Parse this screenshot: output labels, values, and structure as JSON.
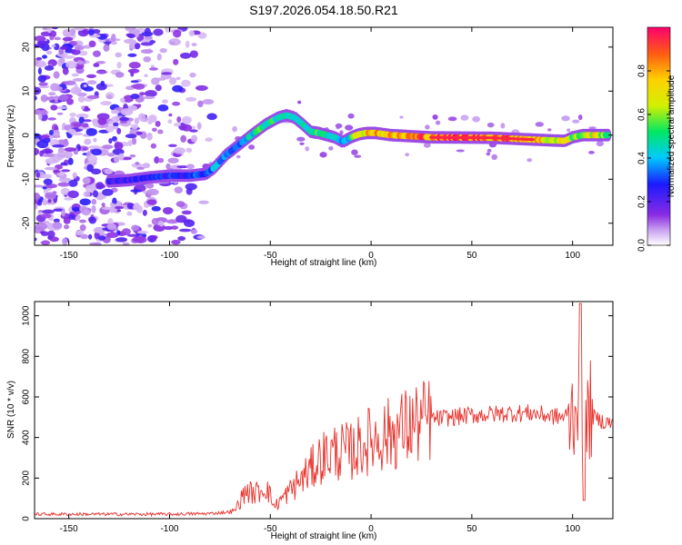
{
  "title": "S197.2026.054.18.50.R21",
  "chart_data": [
    {
      "type": "heatmap",
      "name": "spectrogram",
      "xlabel": "Height of straight line (km)",
      "ylabel": "Frequency (Hz)",
      "xlim": [
        -167,
        120
      ],
      "ylim": [
        -25,
        24.5
      ],
      "x_ticks": [
        -150,
        -100,
        -50,
        0,
        50,
        100
      ],
      "y_ticks": [
        -20,
        -10,
        0,
        10,
        20
      ],
      "ridge": {
        "x": [
          -130,
          -120,
          -110,
          -100,
          -90,
          -82,
          -78,
          -72,
          -65,
          -58,
          -52,
          -46,
          -42,
          -38,
          -34,
          -30,
          -26,
          -22,
          -18,
          -14,
          -10,
          -6,
          -2,
          2,
          10,
          30,
          60,
          80,
          90,
          96,
          100,
          105,
          110,
          118
        ],
        "y": [
          -10.5,
          -10.2,
          -9.6,
          -9.2,
          -9.2,
          -8.8,
          -7.5,
          -4.5,
          -2.0,
          0.5,
          2.5,
          4.0,
          4.5,
          4.0,
          2.5,
          0.8,
          0.5,
          0.0,
          -0.5,
          -1.5,
          -0.5,
          0.2,
          0.5,
          0.5,
          0.0,
          -0.5,
          -0.6,
          -1.0,
          -1.2,
          -1.3,
          -0.5,
          0.0,
          0.0,
          0.0
        ],
        "amplitude": [
          0.25,
          0.25,
          0.3,
          0.3,
          0.3,
          0.35,
          0.4,
          0.35,
          0.4,
          0.5,
          0.55,
          0.55,
          0.5,
          0.5,
          0.45,
          0.5,
          0.55,
          0.55,
          0.5,
          0.45,
          0.5,
          0.75,
          0.85,
          0.85,
          0.8,
          0.95,
          0.95,
          0.85,
          0.7,
          0.8,
          0.6,
          0.65,
          0.75,
          0.6
        ]
      },
      "noise_region": [
        -167,
        -75
      ],
      "colorbar": {
        "label": "Normalized spectral amplitude",
        "range": [
          0,
          1
        ],
        "ticks": [
          "0.0",
          "0.2",
          "0.4",
          "0.6",
          "0.8"
        ]
      }
    },
    {
      "type": "line",
      "name": "snr",
      "xlabel": "Height of straight line (km)",
      "ylabel": "SNR (10 * v/v)",
      "xlim": [
        -167,
        120
      ],
      "ylim": [
        0,
        1070
      ],
      "x_ticks": [
        -150,
        -100,
        -50,
        0,
        50,
        100
      ],
      "y_ticks": [
        0,
        200,
        400,
        600,
        800,
        1000
      ],
      "color": "#e8302a",
      "envelope": {
        "x": [
          -167,
          -100,
          -80,
          -68,
          -62,
          -58,
          -52,
          -48,
          -42,
          -36,
          -30,
          -25,
          -18,
          -10,
          0,
          10,
          20,
          30,
          40,
          50,
          60,
          70,
          80,
          90,
          95,
          100,
          102,
          104,
          106,
          108,
          110,
          115,
          120
        ],
        "y": [
          22,
          22,
          25,
          35,
          140,
          120,
          160,
          60,
          120,
          180,
          240,
          300,
          330,
          330,
          390,
          420,
          460,
          490,
          500,
          510,
          515,
          520,
          520,
          505,
          500,
          520,
          600,
          700,
          300,
          550,
          500,
          480,
          470
        ]
      }
    }
  ]
}
